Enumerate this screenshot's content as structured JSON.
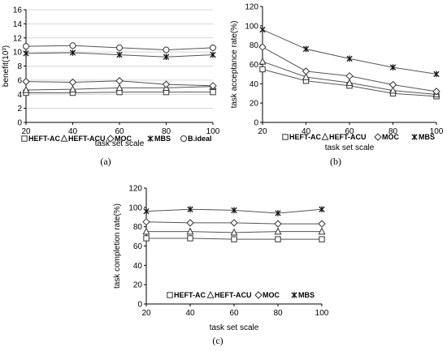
{
  "chart_data": [
    {
      "id": "a",
      "type": "line",
      "panel_label": "(a)",
      "xlabel": "task set scale",
      "ylabel": "benefit(10³)",
      "x": [
        20,
        40,
        60,
        80,
        100
      ],
      "xlim": [
        20,
        100
      ],
      "ylim": [
        0,
        16
      ],
      "yticks": [
        0,
        2,
        4,
        6,
        8,
        10,
        12,
        14,
        16
      ],
      "grid": true,
      "legend_position": "bottom",
      "series": [
        {
          "name": "HEFT-AC",
          "marker": "square",
          "values": [
            4.2,
            4.2,
            4.3,
            4.3,
            4.3
          ]
        },
        {
          "name": "HEFT-ACU",
          "marker": "triangle",
          "values": [
            4.6,
            4.7,
            4.9,
            4.9,
            5.1
          ]
        },
        {
          "name": "MOC",
          "marker": "diamond",
          "values": [
            5.8,
            5.7,
            5.9,
            5.4,
            5.2
          ]
        },
        {
          "name": "MBS",
          "marker": "star",
          "values": [
            9.8,
            9.9,
            9.6,
            9.3,
            9.6
          ]
        },
        {
          "name": "B.ideal",
          "marker": "circle",
          "values": [
            10.8,
            10.9,
            10.6,
            10.3,
            10.6
          ]
        }
      ]
    },
    {
      "id": "b",
      "type": "line",
      "panel_label": "(b)",
      "xlabel": "task set scale",
      "ylabel": "task acceptance rate(%)",
      "x": [
        20,
        40,
        60,
        80,
        100
      ],
      "xlim": [
        20,
        100
      ],
      "ylim": [
        0,
        120
      ],
      "yticks": [
        0,
        20,
        40,
        60,
        80,
        100,
        120
      ],
      "grid": false,
      "legend_position": "bottom",
      "series": [
        {
          "name": "HEFT-AC",
          "marker": "square",
          "values": [
            55,
            43,
            38,
            30,
            27
          ]
        },
        {
          "name": "HEFT-ACU",
          "marker": "triangle",
          "values": [
            63,
            47,
            41,
            33,
            29
          ]
        },
        {
          "name": "MOC",
          "marker": "diamond",
          "values": [
            78,
            53,
            48,
            39,
            32
          ]
        },
        {
          "name": "MBS",
          "marker": "star",
          "values": [
            96,
            76,
            66,
            57,
            50
          ]
        }
      ]
    },
    {
      "id": "c",
      "type": "line",
      "panel_label": "(c)",
      "xlabel": "task  set scale",
      "ylabel": "task completion rate(%)",
      "x": [
        20,
        40,
        60,
        80,
        100
      ],
      "xlim": [
        20,
        100
      ],
      "ylim": [
        0,
        120
      ],
      "yticks": [
        0,
        20,
        40,
        60,
        80,
        100,
        120
      ],
      "grid": false,
      "legend_position": "bottom",
      "series": [
        {
          "name": "HEFT-AC",
          "marker": "square",
          "values": [
            68,
            68,
            67,
            67,
            67
          ]
        },
        {
          "name": "HEFT-ACU",
          "marker": "triangle",
          "values": [
            75,
            75,
            74,
            75,
            75
          ]
        },
        {
          "name": "MOC",
          "marker": "diamond",
          "values": [
            85,
            84,
            84,
            83,
            83
          ]
        },
        {
          "name": "MBS",
          "marker": "star",
          "values": [
            96,
            98,
            97,
            94,
            98
          ]
        }
      ]
    }
  ]
}
